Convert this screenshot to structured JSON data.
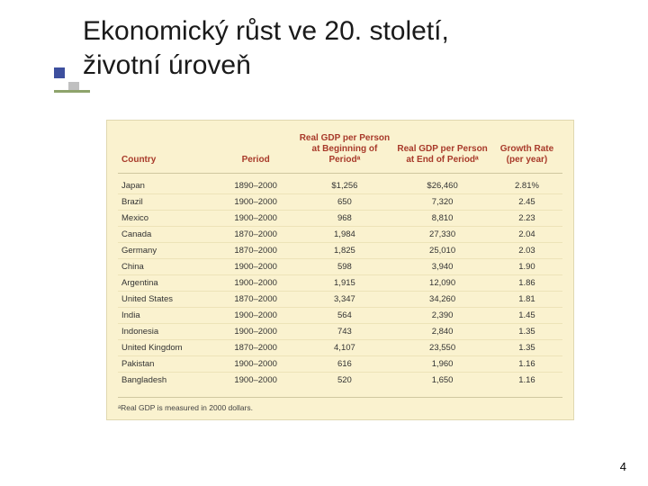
{
  "title": {
    "line1": "Ekonomický růst ve 20. století,",
    "line2": "životní úroveň",
    "title_color": "#1a1a1a",
    "title_fontsize": 30,
    "bullet_color_primary": "#3d4f9e",
    "bullet_color_shadow": "#c0c0c0",
    "underline_color": "#8ea36b"
  },
  "table": {
    "background_color": "#faf2cf",
    "header_color": "#a83a2a",
    "header_fontsize": 10,
    "body_fontsize": 9.5,
    "row_border_color": "#ede3b8",
    "header_border_color": "#d0c8a0",
    "columns": [
      "Country",
      "Period",
      "Real GDP per Person at Beginning of Periodᵃ",
      "Real GDP per Person at End of Periodᵃ",
      "Growth Rate (per year)"
    ],
    "rows": [
      {
        "country": "Japan",
        "period": "1890–2000",
        "gdp_begin": "$1,256",
        "gdp_end": "$26,460",
        "growth": "2.81%"
      },
      {
        "country": "Brazil",
        "period": "1900–2000",
        "gdp_begin": "650",
        "gdp_end": "7,320",
        "growth": "2.45"
      },
      {
        "country": "Mexico",
        "period": "1900–2000",
        "gdp_begin": "968",
        "gdp_end": "8,810",
        "growth": "2.23"
      },
      {
        "country": "Canada",
        "period": "1870–2000",
        "gdp_begin": "1,984",
        "gdp_end": "27,330",
        "growth": "2.04"
      },
      {
        "country": "Germany",
        "period": "1870–2000",
        "gdp_begin": "1,825",
        "gdp_end": "25,010",
        "growth": "2.03"
      },
      {
        "country": "China",
        "period": "1900–2000",
        "gdp_begin": "598",
        "gdp_end": "3,940",
        "growth": "1.90"
      },
      {
        "country": "Argentina",
        "period": "1900–2000",
        "gdp_begin": "1,915",
        "gdp_end": "12,090",
        "growth": "1.86"
      },
      {
        "country": "United States",
        "period": "1870–2000",
        "gdp_begin": "3,347",
        "gdp_end": "34,260",
        "growth": "1.81"
      },
      {
        "country": "India",
        "period": "1900–2000",
        "gdp_begin": "564",
        "gdp_end": "2,390",
        "growth": "1.45"
      },
      {
        "country": "Indonesia",
        "period": "1900–2000",
        "gdp_begin": "743",
        "gdp_end": "2,840",
        "growth": "1.35"
      },
      {
        "country": "United Kingdom",
        "period": "1870–2000",
        "gdp_begin": "4,107",
        "gdp_end": "23,550",
        "growth": "1.35"
      },
      {
        "country": "Pakistan",
        "period": "1900–2000",
        "gdp_begin": "616",
        "gdp_end": "1,960",
        "growth": "1.16"
      },
      {
        "country": "Bangladesh",
        "period": "1900–2000",
        "gdp_begin": "520",
        "gdp_end": "1,650",
        "growth": "1.16"
      }
    ],
    "footnote": "ᵃReal GDP is measured in 2000 dollars.",
    "footnote_fontsize": 8.5,
    "col_widths_pct": [
      22,
      18,
      22,
      22,
      16
    ]
  },
  "page_number": "4",
  "slide_background": "#ffffff"
}
